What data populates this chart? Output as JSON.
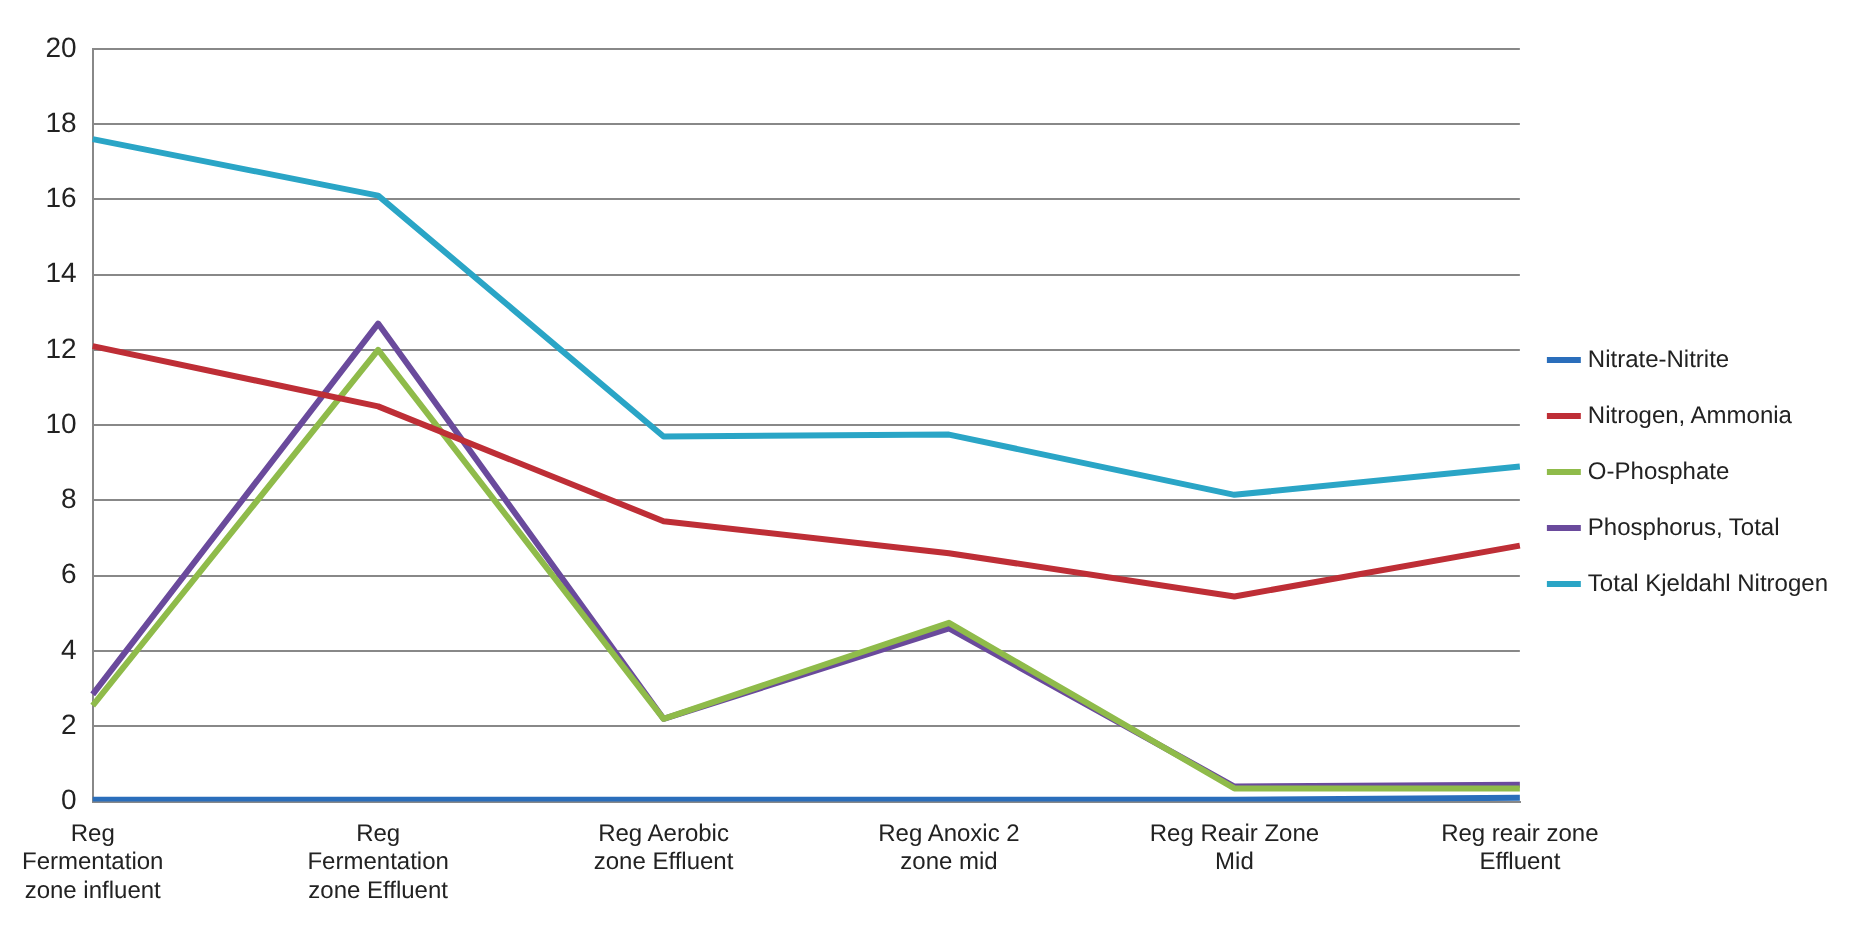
{
  "chart_data": {
    "type": "line",
    "categories": [
      "Reg Fermentation zone influent",
      "Reg Fermentation zone Effluent",
      "Reg Aerobic zone Effluent",
      "Reg Anoxic 2 zone mid",
      "Reg Reair Zone Mid",
      "Reg reair zone Effluent"
    ],
    "series": [
      {
        "name": "Nitrate-Nitrite",
        "color": "#2a6ebb",
        "values": [
          0.05,
          0.05,
          0.05,
          0.05,
          0.05,
          0.1
        ]
      },
      {
        "name": "Nitrogen, Ammonia",
        "color": "#be2e36",
        "values": [
          12.1,
          10.5,
          7.45,
          6.6,
          5.45,
          6.8
        ]
      },
      {
        "name": "O-Phosphate",
        "color": "#8fbb4a",
        "values": [
          2.55,
          12.0,
          2.2,
          4.75,
          0.35,
          0.35
        ]
      },
      {
        "name": "Phosphorus, Total",
        "color": "#6a4a9c",
        "values": [
          2.85,
          12.7,
          2.2,
          4.6,
          0.4,
          0.45
        ]
      },
      {
        "name": "Total Kjeldahl Nitrogen",
        "color": "#2aa5c6",
        "values": [
          17.6,
          16.1,
          9.7,
          9.75,
          8.15,
          8.9
        ]
      }
    ],
    "ylim": [
      0,
      20
    ],
    "yticks": [
      0,
      2,
      4,
      6,
      8,
      10,
      12,
      14,
      16,
      18,
      20
    ],
    "grid": "y",
    "legend": "right",
    "marker": "none",
    "line_style": "solid"
  }
}
